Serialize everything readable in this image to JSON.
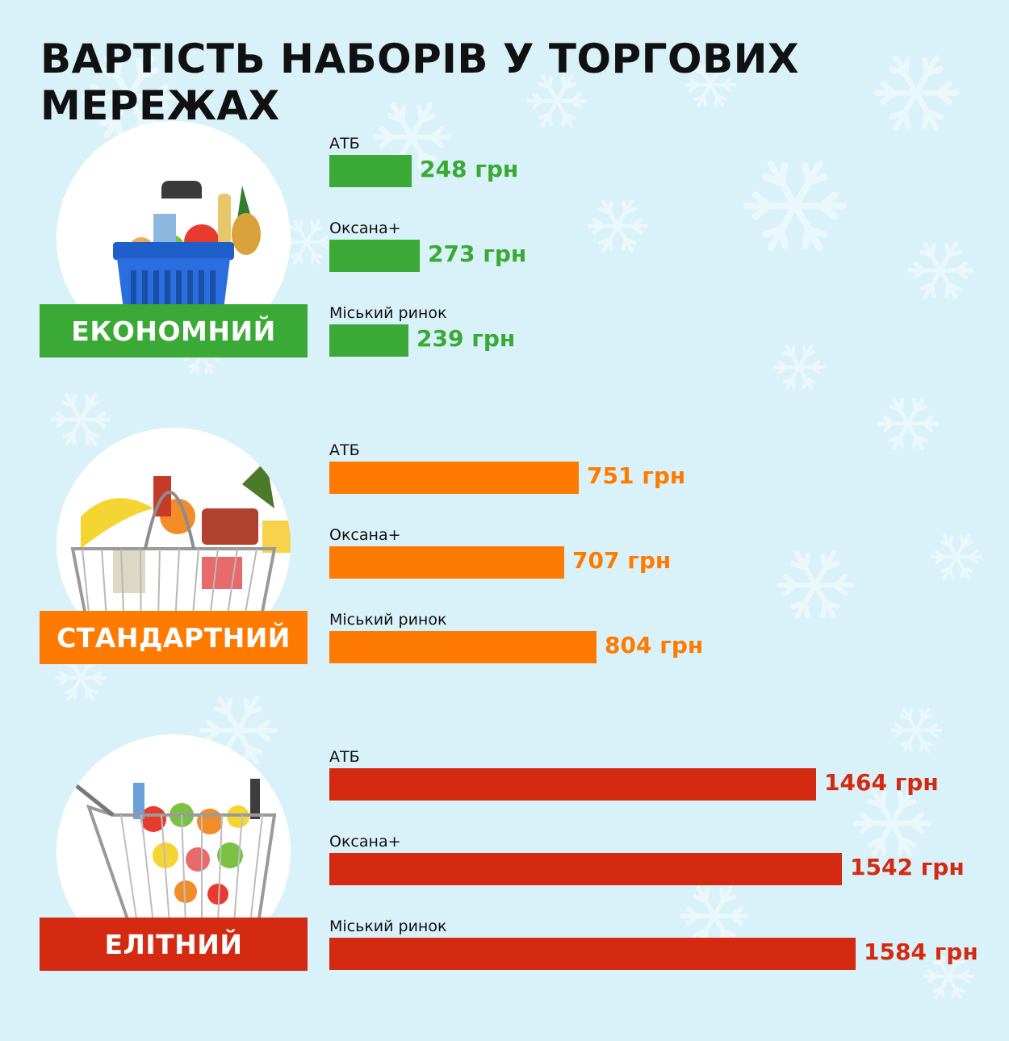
{
  "title": "ВАРТІСТЬ НАБОРІВ У ТОРГОВИХ МЕРЕЖАХ",
  "colors": {
    "background": "#d9f1f8",
    "snowflake": "#eaf8fc",
    "economy": "#3aa935",
    "standard": "#ff7a00",
    "elite": "#d42a12"
  },
  "chart_data": {
    "type": "bar",
    "orientation": "horizontal",
    "title": "ВАРТІСТЬ НАБОРІВ У ТОРГОВИХ МЕРЕЖАХ",
    "unit": "грн",
    "categories": [
      "АТБ",
      "Оксана+",
      "Міський ринок"
    ],
    "series": [
      {
        "name": "ЕКОНОМНИЙ",
        "color": "#3aa935",
        "icon": "shopping-basket-icon",
        "values": [
          248,
          273,
          239
        ],
        "labels": [
          "248 грн",
          "273 грн",
          "239 грн"
        ]
      },
      {
        "name": "СТАНДАРТНИЙ",
        "color": "#ff7a00",
        "icon": "wire-basket-icon",
        "values": [
          751,
          707,
          804
        ],
        "labels": [
          "751 грн",
          "707 грн",
          "804 грн"
        ]
      },
      {
        "name": "ЕЛІТНИЙ",
        "color": "#d42a12",
        "icon": "shopping-cart-icon",
        "values": [
          1464,
          1542,
          1584
        ],
        "labels": [
          "1464 грн",
          "1542 грн",
          "1584 грн"
        ]
      }
    ]
  }
}
